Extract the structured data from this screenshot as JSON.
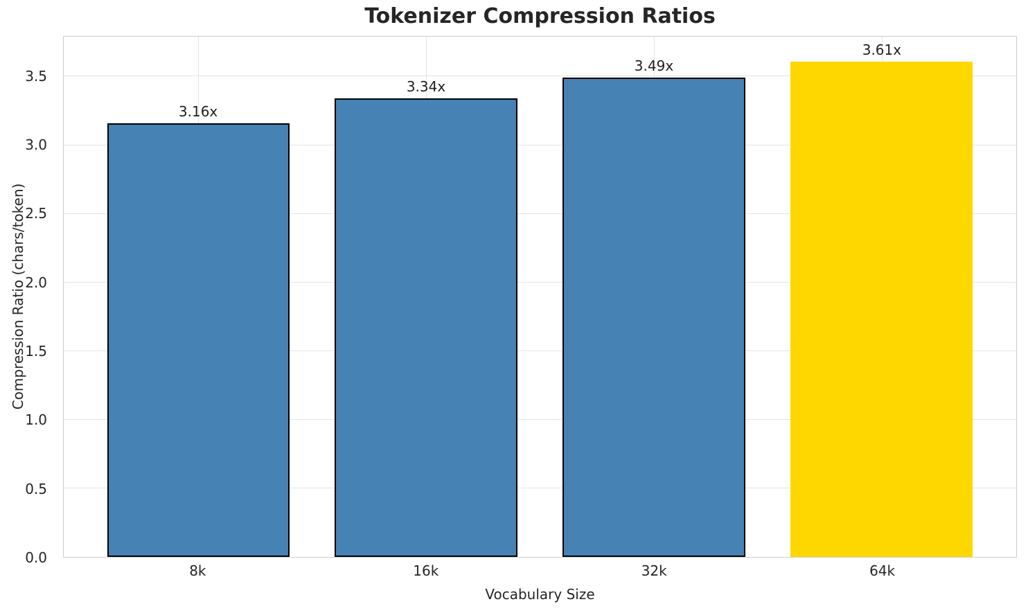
{
  "chart_data": {
    "type": "bar",
    "title": "Tokenizer Compression Ratios",
    "xlabel": "Vocabulary Size",
    "ylabel": "Compression Ratio (chars/token)",
    "categories": [
      "8k",
      "16k",
      "32k",
      "64k"
    ],
    "values": [
      3.16,
      3.34,
      3.49,
      3.61
    ],
    "bar_labels": [
      "3.16x",
      "3.34x",
      "3.49x",
      "3.61x"
    ],
    "yticks": [
      0.0,
      0.5,
      1.0,
      1.5,
      2.0,
      2.5,
      3.0,
      3.5
    ],
    "ytick_labels": [
      "0.0",
      "0.5",
      "1.0",
      "1.5",
      "2.0",
      "2.5",
      "3.0",
      "3.5"
    ],
    "ylim": [
      0,
      3.79
    ],
    "grid": true,
    "legend": "none",
    "base_color": "#4682B4",
    "highlight_color": "#FFD700",
    "bar_colors": [
      "#4682B4",
      "#4682B4",
      "#4682B4",
      "#FFD700"
    ],
    "bar_edge_colors": [
      "#000000",
      "#000000",
      "#000000",
      "#FFD700"
    ]
  }
}
